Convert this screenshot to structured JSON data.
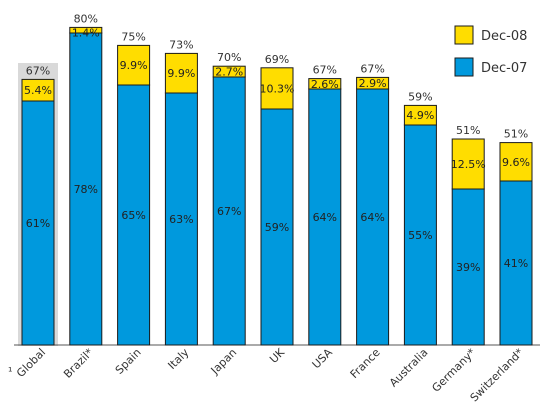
{
  "chart_data": {
    "type": "bar",
    "stacked": true,
    "categories": [
      "Global",
      "Brazil*",
      "Spain",
      "Italy",
      "Japan",
      "UK",
      "USA",
      "France",
      "Australia",
      "Germany*",
      "Switzerland*"
    ],
    "category_prefix": "¹",
    "series": [
      {
        "name": "Dec-07",
        "values": [
          61,
          78,
          65,
          63,
          67,
          59,
          64,
          64,
          55,
          39,
          41
        ],
        "labels": [
          "61%",
          "78%",
          "65%",
          "63%",
          "67%",
          "59%",
          "64%",
          "64%",
          "55%",
          "39%",
          "41%"
        ],
        "color": "#0099dd"
      },
      {
        "name": "Dec-08",
        "values": [
          5.4,
          1.4,
          9.9,
          9.9,
          2.7,
          10.3,
          2.6,
          2.9,
          4.9,
          12.5,
          9.6
        ],
        "labels": [
          "5.4%",
          "1.4%",
          "9.9%",
          "9.9%",
          "2.7%",
          "10.3%",
          "2.6%",
          "2.9%",
          "4.9%",
          "12.5%",
          "9.6%"
        ],
        "color": "#ffdd00"
      }
    ],
    "totals": [
      "67%",
      "80%",
      "75%",
      "73%",
      "70%",
      "69%",
      "67%",
      "67%",
      "59%",
      "51%",
      "51%"
    ],
    "highlight_category": "Global",
    "highlight_color": "#d9d9d9",
    "legend": {
      "position": "top-right",
      "items": [
        "Dec-08",
        "Dec-07"
      ]
    },
    "ylim": [
      0,
      80
    ],
    "grid": false,
    "title": "",
    "xlabel": "",
    "ylabel": ""
  }
}
